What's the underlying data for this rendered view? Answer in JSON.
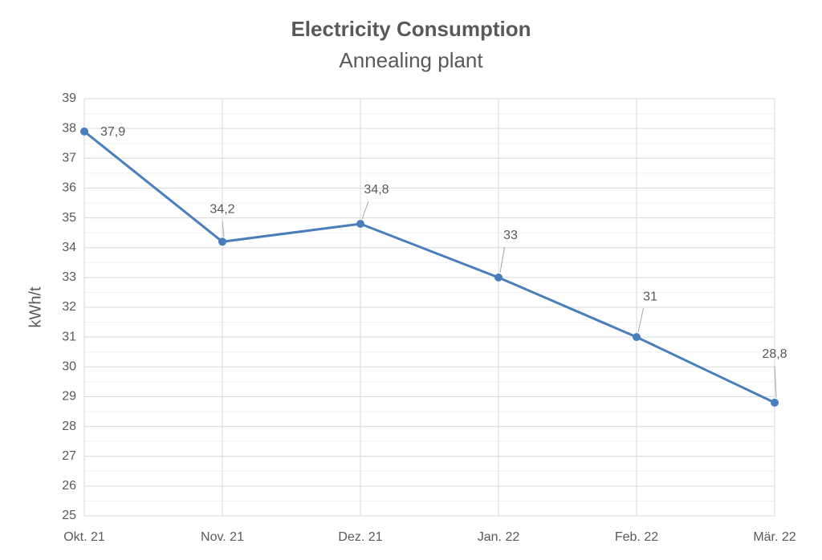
{
  "chart_data": {
    "type": "line",
    "title": "Electricity Consumption",
    "subtitle": "Annealing plant",
    "y_label": "kWh/t",
    "categories": [
      "Okt. 21",
      "Nov. 21",
      "Dez. 21",
      "Jan. 22",
      "Feb. 22",
      "Mär. 22"
    ],
    "values": [
      37.9,
      34.2,
      34.8,
      33,
      31,
      28.8
    ],
    "value_labels": [
      "37,9",
      "34,2",
      "34,8",
      "33",
      "31",
      "28,8"
    ],
    "color": "#4a7ebb",
    "ylim": [
      25,
      39
    ],
    "yticks": [
      25,
      26,
      27,
      28,
      29,
      30,
      31,
      32,
      33,
      34,
      35,
      36,
      37,
      38,
      39
    ],
    "grid": true
  }
}
